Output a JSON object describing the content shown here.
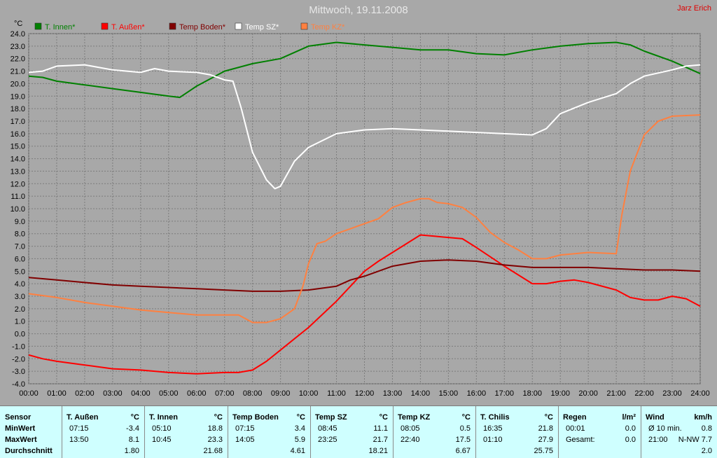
{
  "header": {
    "title": "Mittwoch, 19.11.2008",
    "author": "Jarz Erich"
  },
  "chart_data": {
    "type": "line",
    "ylabel": "°C",
    "ylim": [
      -4,
      24
    ],
    "yticks": [
      "24.0",
      "23.0",
      "22.0",
      "21.0",
      "20.0",
      "19.0",
      "18.0",
      "17.0",
      "16.0",
      "15.0",
      "14.0",
      "13.0",
      "12.0",
      "11.0",
      "10.0",
      "9.0",
      "8.0",
      "7.0",
      "6.0",
      "5.0",
      "4.0",
      "3.0",
      "2.0",
      "1.0",
      "0.0",
      "-1.0",
      "-2.0",
      "-3.0",
      "-4.0"
    ],
    "xlim": [
      0,
      24
    ],
    "xticks": [
      "00:00",
      "01:00",
      "02:00",
      "03:00",
      "04:00",
      "05:00",
      "06:00",
      "07:00",
      "08:00",
      "09:00",
      "10:00",
      "11:00",
      "12:00",
      "13:00",
      "14:00",
      "15:00",
      "16:00",
      "17:00",
      "18:00",
      "19:00",
      "20:00",
      "21:00",
      "22:00",
      "23:00",
      "24:00"
    ],
    "grid": true,
    "legend_position": "top-left",
    "series": [
      {
        "name": "T. Innen*",
        "color": "#008000",
        "x": [
          0,
          0.5,
          1,
          2,
          3,
          4,
          5,
          5.4,
          6,
          7,
          8,
          8.5,
          9,
          9.5,
          10,
          11,
          12,
          13,
          14,
          15,
          16,
          17,
          18,
          19,
          20,
          21,
          21.5,
          22,
          23,
          23.5,
          24
        ],
        "y": [
          20.6,
          20.5,
          20.2,
          19.9,
          19.6,
          19.3,
          19.0,
          18.9,
          19.8,
          21.0,
          21.6,
          21.8,
          22.0,
          22.5,
          23.0,
          23.3,
          23.1,
          22.9,
          22.7,
          22.7,
          22.4,
          22.3,
          22.7,
          23.0,
          23.2,
          23.3,
          23.1,
          22.6,
          21.8,
          21.3,
          20.8
        ]
      },
      {
        "name": "T. Außen*",
        "color": "#ff0000",
        "x": [
          0,
          0.5,
          1,
          2,
          3,
          4,
          5,
          6,
          7,
          7.5,
          8,
          8.5,
          9,
          9.5,
          10,
          11,
          12,
          12.5,
          13,
          14,
          14.5,
          15,
          15.5,
          16,
          17,
          18,
          18.5,
          19,
          19.5,
          20,
          21,
          21.5,
          22,
          22.5,
          23,
          23.5,
          24
        ],
        "y": [
          -1.7,
          -2.0,
          -2.2,
          -2.5,
          -2.8,
          -2.9,
          -3.1,
          -3.2,
          -3.1,
          -3.1,
          -2.9,
          -2.2,
          -1.3,
          -0.4,
          0.5,
          2.6,
          5.0,
          5.8,
          6.5,
          7.9,
          7.8,
          7.7,
          7.6,
          6.9,
          5.4,
          4.0,
          4.0,
          4.2,
          4.3,
          4.1,
          3.5,
          2.9,
          2.7,
          2.7,
          3.0,
          2.8,
          2.2
        ]
      },
      {
        "name": "Temp Boden*",
        "color": "#800000",
        "x": [
          0,
          1,
          2,
          3,
          4,
          5,
          6,
          7,
          8,
          9,
          10,
          11,
          11.5,
          12,
          13,
          14,
          15,
          16,
          17,
          18,
          19,
          20,
          21,
          22,
          23,
          24
        ],
        "y": [
          4.5,
          4.3,
          4.1,
          3.9,
          3.8,
          3.7,
          3.6,
          3.5,
          3.4,
          3.4,
          3.5,
          3.8,
          4.3,
          4.6,
          5.4,
          5.8,
          5.9,
          5.8,
          5.5,
          5.3,
          5.3,
          5.3,
          5.2,
          5.1,
          5.1,
          5.0
        ]
      },
      {
        "name": "Temp SZ*",
        "color": "#ffffff",
        "x": [
          0,
          0.5,
          1,
          2,
          3,
          4,
          4.5,
          5,
          6,
          6.5,
          7,
          7.3,
          7.6,
          8,
          8.5,
          8.8,
          9,
          9.5,
          10,
          11,
          12,
          13,
          14,
          15,
          16,
          17,
          18,
          18.5,
          19,
          20,
          21,
          21.5,
          22,
          23,
          23.5,
          24
        ],
        "y": [
          20.9,
          21.0,
          21.4,
          21.5,
          21.1,
          20.9,
          21.2,
          21.0,
          20.9,
          20.7,
          20.3,
          20.2,
          18.0,
          14.5,
          12.3,
          11.6,
          11.8,
          13.8,
          14.9,
          16.0,
          16.3,
          16.4,
          16.3,
          16.2,
          16.1,
          16.0,
          15.9,
          16.4,
          17.6,
          18.5,
          19.2,
          20.0,
          20.6,
          21.1,
          21.4,
          21.5
        ]
      },
      {
        "name": "Temp KZ*",
        "color": "#ff8040",
        "x": [
          0,
          1,
          2,
          3,
          4,
          5,
          6,
          7,
          7.5,
          8,
          8.5,
          9,
          9.5,
          9.8,
          10,
          10.3,
          10.6,
          11,
          12,
          12.5,
          13,
          13.5,
          14,
          14.3,
          14.6,
          15,
          15.5,
          16,
          16.5,
          17,
          17.5,
          18,
          18.5,
          19,
          20,
          21,
          21.2,
          21.5,
          22,
          22.5,
          23,
          24
        ],
        "y": [
          3.2,
          2.9,
          2.5,
          2.2,
          1.9,
          1.7,
          1.5,
          1.5,
          1.5,
          0.9,
          0.9,
          1.2,
          2.0,
          3.8,
          5.6,
          7.2,
          7.4,
          8.0,
          8.8,
          9.2,
          10.1,
          10.5,
          10.8,
          10.8,
          10.5,
          10.4,
          10.1,
          9.3,
          8.1,
          7.3,
          6.7,
          6.0,
          6.0,
          6.3,
          6.5,
          6.4,
          9.5,
          13.0,
          15.9,
          17.0,
          17.4,
          17.5
        ]
      }
    ]
  },
  "stats": {
    "sensor": {
      "header": "Sensor",
      "min": "MinWert",
      "max": "MaxWert",
      "avg": "Durchschnitt"
    },
    "columns": [
      {
        "name": "T. Außen",
        "unit": "°C",
        "min_time": "07:15",
        "min": "-3.4",
        "max_time": "13:50",
        "max": "8.1",
        "avg": "1.80"
      },
      {
        "name": "T. Innen",
        "unit": "°C",
        "min_time": "05:10",
        "min": "18.8",
        "max_time": "10:45",
        "max": "23.3",
        "avg": "21.68"
      },
      {
        "name": "Temp Boden",
        "unit": "°C",
        "min_time": "07:15",
        "min": "3.4",
        "max_time": "14:05",
        "max": "5.9",
        "avg": "4.61"
      },
      {
        "name": "Temp SZ",
        "unit": "°C",
        "min_time": "08:45",
        "min": "11.1",
        "max_time": "23:25",
        "max": "21.7",
        "avg": "18.21"
      },
      {
        "name": "Temp KZ",
        "unit": "°C",
        "min_time": "08:05",
        "min": "0.5",
        "max_time": "22:40",
        "max": "17.5",
        "avg": "6.67"
      },
      {
        "name": "T. Chilis",
        "unit": "°C",
        "min_time": "16:35",
        "min": "21.8",
        "max_time": "01:10",
        "max": "27.9",
        "avg": "25.75"
      },
      {
        "name": "Regen",
        "unit": "l/m²",
        "min_time": "00:01",
        "min": "0.0",
        "max_time": "Gesamt:",
        "max": "0.0",
        "avg": ""
      },
      {
        "name": "Wind",
        "unit": "km/h",
        "min_time": "Ø 10 min.",
        "min": "0.8",
        "max_time": "21:00",
        "max": "N-NW 7.7",
        "avg": "2.0"
      }
    ]
  }
}
